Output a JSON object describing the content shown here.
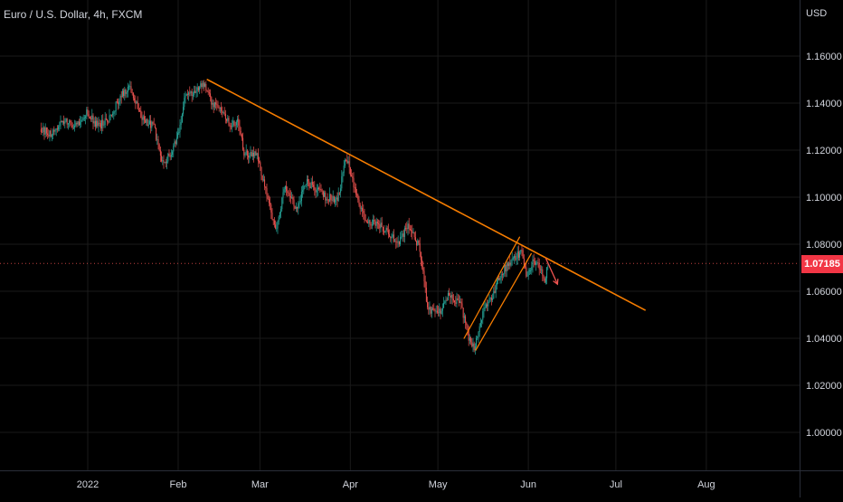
{
  "header": {
    "title": "Euro / U.S. Dollar, 4h, FXCM"
  },
  "yaxis": {
    "currency": "USD"
  },
  "last_price": {
    "label": "1.07185",
    "value": 1.07185,
    "color": "#f23645"
  },
  "colors": {
    "background": "#000000",
    "grid": "#1a1a1a",
    "up_candle": "#26a69a",
    "down_candle": "#ef5350",
    "trendline": "#f57c00",
    "arrow": "#ef5350",
    "axis_text": "#d1d4dc"
  },
  "chart_data": {
    "type": "candlestick",
    "title": "Euro / U.S. Dollar, 4h, FXCM",
    "ylabel": "USD",
    "ylim": [
      0.98,
      1.17
    ],
    "y_ticks": [
      "1.16000",
      "1.14000",
      "1.12000",
      "1.10000",
      "1.08000",
      "1.06000",
      "1.04000",
      "1.02000",
      "1.00000"
    ],
    "x_ticks": [
      "2022",
      "Feb",
      "Mar",
      "Apr",
      "May",
      "Jun",
      "Jul",
      "Aug"
    ],
    "grid": true,
    "price_path": [
      [
        "2021-12-16",
        1.129
      ],
      [
        "2021-12-20",
        1.127
      ],
      [
        "2021-12-24",
        1.133
      ],
      [
        "2021-12-28",
        1.13
      ],
      [
        "2022-01-01",
        1.136
      ],
      [
        "2022-01-05",
        1.13
      ],
      [
        "2022-01-09",
        1.134
      ],
      [
        "2022-01-13",
        1.144
      ],
      [
        "2022-01-16",
        1.147
      ],
      [
        "2022-01-20",
        1.133
      ],
      [
        "2022-01-24",
        1.13
      ],
      [
        "2022-01-27",
        1.115
      ],
      [
        "2022-01-30",
        1.118
      ],
      [
        "2022-02-02",
        1.13
      ],
      [
        "2022-02-04",
        1.145
      ],
      [
        "2022-02-07",
        1.144
      ],
      [
        "2022-02-10",
        1.148
      ],
      [
        "2022-02-13",
        1.14
      ],
      [
        "2022-02-16",
        1.137
      ],
      [
        "2022-02-19",
        1.131
      ],
      [
        "2022-02-22",
        1.132
      ],
      [
        "2022-02-24",
        1.118
      ],
      [
        "2022-02-28",
        1.119
      ],
      [
        "2022-03-03",
        1.105
      ],
      [
        "2022-03-07",
        1.085
      ],
      [
        "2022-03-10",
        1.105
      ],
      [
        "2022-03-14",
        1.095
      ],
      [
        "2022-03-17",
        1.107
      ],
      [
        "2022-03-21",
        1.103
      ],
      [
        "2022-03-24",
        1.1
      ],
      [
        "2022-03-28",
        1.099
      ],
      [
        "2022-03-31",
        1.117
      ],
      [
        "2022-04-04",
        1.099
      ],
      [
        "2022-04-07",
        1.089
      ],
      [
        "2022-04-11",
        1.089
      ],
      [
        "2022-04-14",
        1.085
      ],
      [
        "2022-04-18",
        1.08
      ],
      [
        "2022-04-21",
        1.088
      ],
      [
        "2022-04-25",
        1.079
      ],
      [
        "2022-04-28",
        1.052
      ],
      [
        "2022-05-02",
        1.051
      ],
      [
        "2022-05-05",
        1.058
      ],
      [
        "2022-05-09",
        1.055
      ],
      [
        "2022-05-12",
        1.04
      ],
      [
        "2022-05-14",
        1.036
      ],
      [
        "2022-05-17",
        1.052
      ],
      [
        "2022-05-20",
        1.057
      ],
      [
        "2022-05-23",
        1.068
      ],
      [
        "2022-05-27",
        1.073
      ],
      [
        "2022-05-30",
        1.077
      ],
      [
        "2022-06-01",
        1.066
      ],
      [
        "2022-06-03",
        1.074
      ],
      [
        "2022-06-06",
        1.069
      ],
      [
        "2022-06-07",
        1.064
      ],
      [
        "2022-06-08",
        1.0718
      ]
    ],
    "drawings": {
      "trendline": [
        [
          "2022-02-11",
          1.15
        ],
        [
          "2022-07-11",
          1.052
        ]
      ],
      "channel_lower": [
        [
          "2022-05-14",
          1.035
        ],
        [
          "2022-06-02",
          1.076
        ]
      ],
      "channel_upper": [
        [
          "2022-05-10",
          1.04
        ],
        [
          "2022-05-29",
          1.083
        ]
      ],
      "arrow": [
        [
          "2022-06-07",
          1.074
        ],
        [
          "2022-06-11",
          1.063
        ]
      ]
    }
  }
}
